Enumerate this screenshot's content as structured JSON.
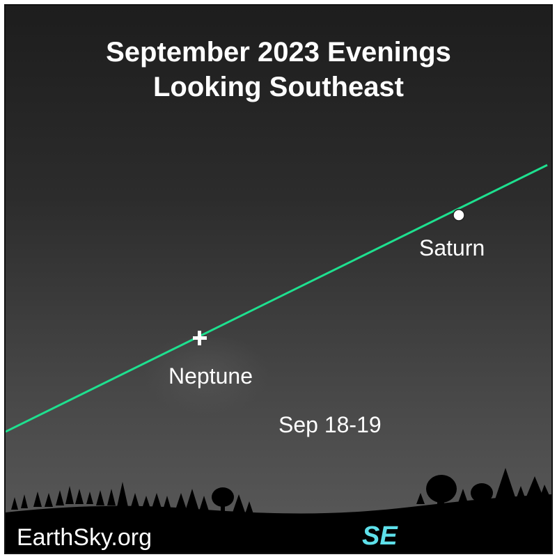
{
  "title": {
    "line1": "September 2023 Evenings",
    "line2": "Looking Southeast"
  },
  "objects": {
    "saturn": {
      "label": "Saturn",
      "symbol": "filled-circle"
    },
    "neptune": {
      "label": "Neptune",
      "symbol": "plus-icon"
    }
  },
  "date_label": "Sep 18-19",
  "direction": {
    "label": "SE",
    "color": "#5ee0ea"
  },
  "credit": "EarthSky.org",
  "colors": {
    "sky_top": "#1d1d1d",
    "sky_bottom": "#5b5b5b",
    "ecliptic": "#1ee08f",
    "text": "#ffffff",
    "ground": "#000000"
  }
}
